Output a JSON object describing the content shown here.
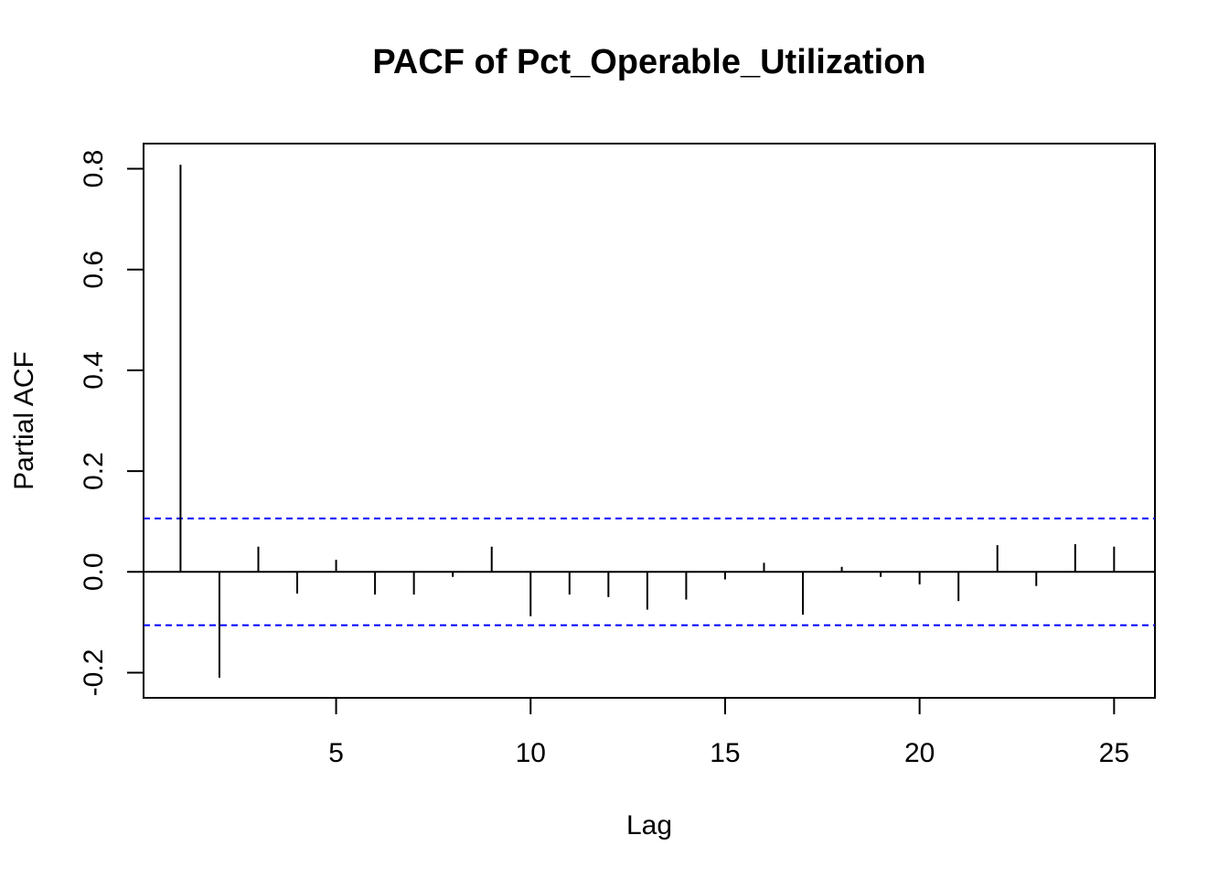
{
  "chart_data": {
    "type": "bar",
    "title": "PACF of Pct_Operable_Utilization",
    "xlabel": "Lag",
    "ylabel": "Partial ACF",
    "xlim": [
      0.05,
      26.05
    ],
    "ylim": [
      -0.25,
      0.85
    ],
    "xticks": [
      5,
      10,
      15,
      20,
      25
    ],
    "yticks": [
      -0.2,
      0.0,
      0.2,
      0.4,
      0.6,
      0.8
    ],
    "ytick_labels": [
      "-0.2",
      "0.0",
      "0.2",
      "0.4",
      "0.6",
      "0.8"
    ],
    "confidence_bound": 0.106,
    "confidence_color": "#0000ff",
    "lags": [
      1,
      2,
      3,
      4,
      5,
      6,
      7,
      8,
      9,
      10,
      11,
      12,
      13,
      14,
      15,
      16,
      17,
      18,
      19,
      20,
      21,
      22,
      23,
      24,
      25
    ],
    "values": [
      0.808,
      -0.21,
      0.05,
      -0.043,
      0.024,
      -0.045,
      -0.045,
      -0.01,
      0.05,
      -0.088,
      -0.045,
      -0.05,
      -0.075,
      -0.055,
      -0.015,
      0.018,
      -0.085,
      0.01,
      -0.01,
      -0.025,
      -0.058,
      0.053,
      -0.028,
      0.055,
      0.05
    ],
    "grid": false,
    "legend": "none"
  }
}
